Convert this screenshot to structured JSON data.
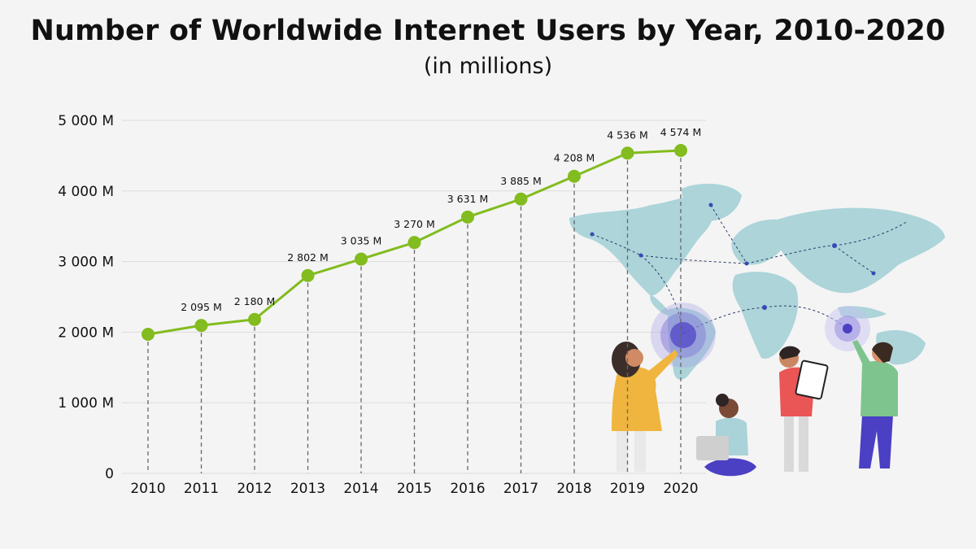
{
  "chart_data": {
    "type": "line",
    "title": "Number of Worldwide Internet Users by Year, 2010-2020",
    "subtitle": "(in millions)",
    "x": [
      "2010",
      "2011",
      "2012",
      "2013",
      "2014",
      "2015",
      "2016",
      "2017",
      "2018",
      "2019",
      "2020"
    ],
    "series": [
      {
        "values": [
          1970,
          2095,
          2180,
          2802,
          3035,
          3270,
          3631,
          3885,
          4208,
          4536,
          4574
        ],
        "labels": [
          "",
          "2 095 M",
          "2 180 M",
          "2 802 M",
          "3 035 M",
          "3 270 M",
          "3 631 M",
          "3 885 M",
          "4 208 M",
          "4 536 M",
          "4 574 M"
        ]
      }
    ],
    "y_ticks": [
      0,
      1000,
      2000,
      3000,
      4000,
      5000
    ],
    "y_tick_labels": [
      "0",
      "1 000 M",
      "2 000 M",
      "3 000 M",
      "4 000 M",
      "5 000 M"
    ],
    "ylim": [
      0,
      5000
    ],
    "grid": true,
    "line_color": "#82bc1e",
    "illustration": "world map with people pointing at locations"
  }
}
